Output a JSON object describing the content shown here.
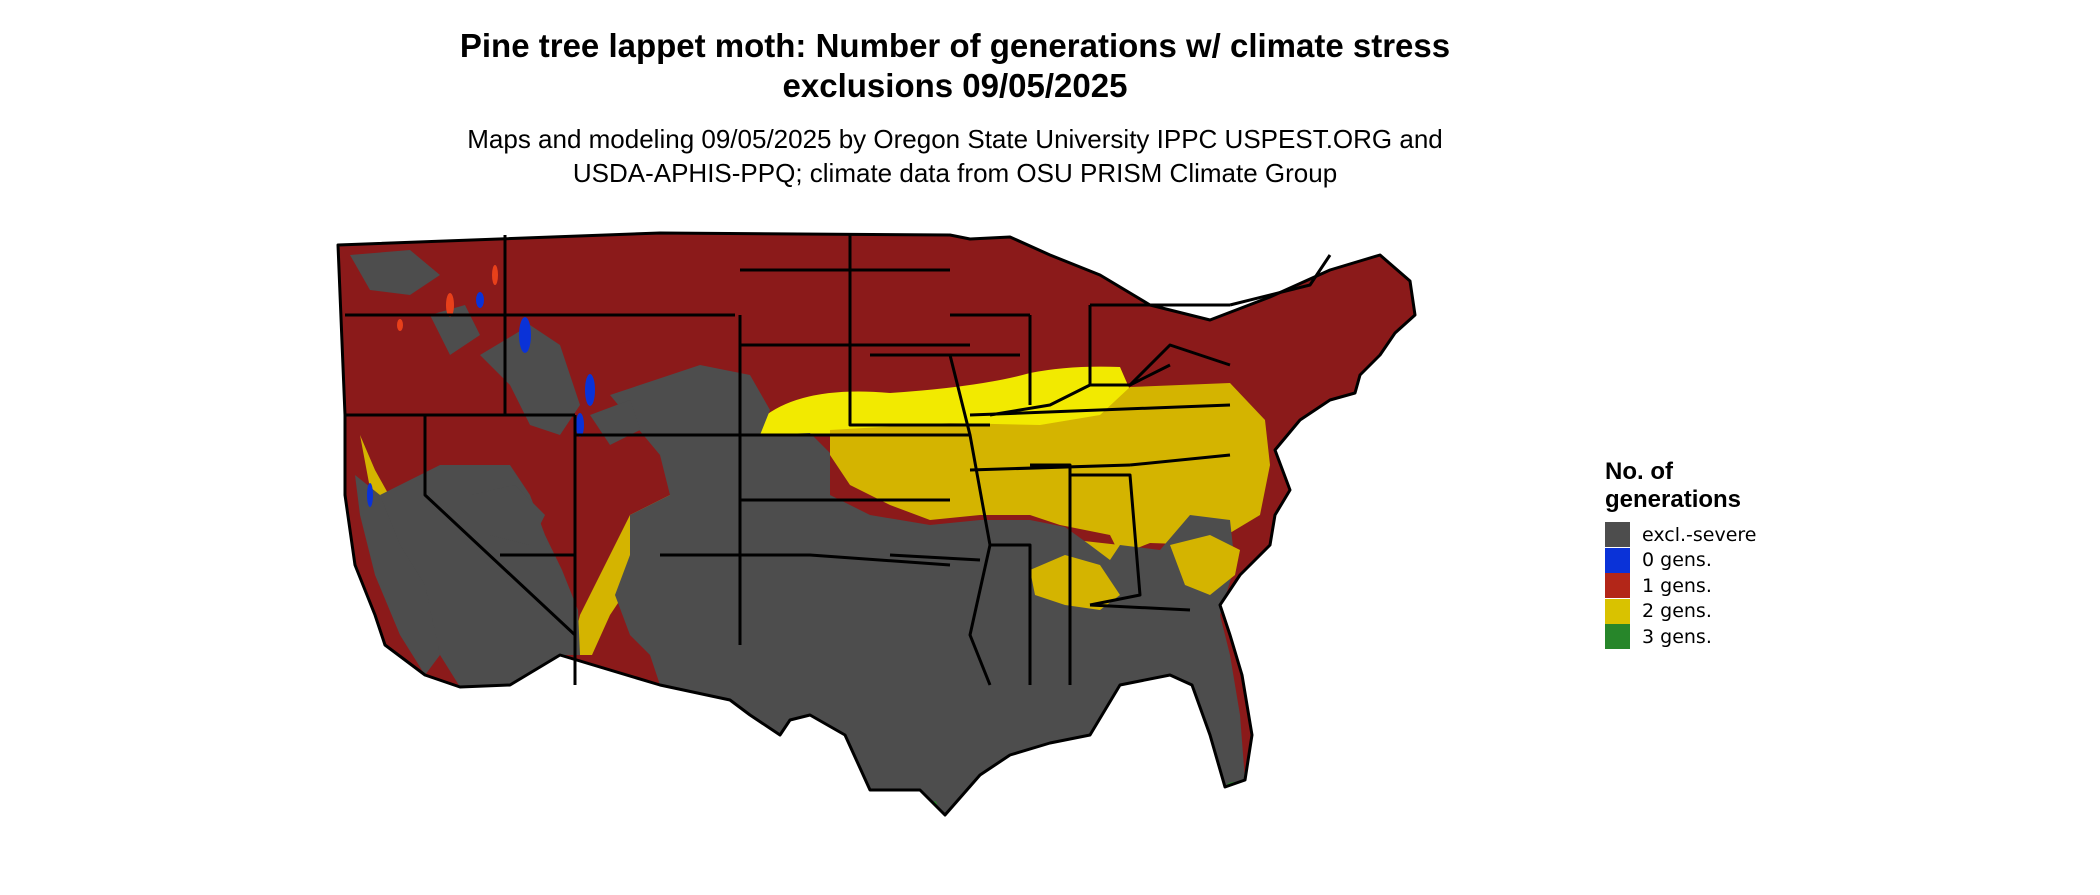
{
  "header": {
    "title_line1": "Pine tree lappet moth: Number of generations w/ climate stress",
    "title_line2": "exclusions 09/05/2025",
    "subtitle_line1": "Maps and modeling 09/05/2025 by Oregon State University IPPC USPEST.ORG and",
    "subtitle_line2": "USDA-APHIS-PPQ; climate data from OSU PRISM Climate Group"
  },
  "legend": {
    "title_line1": "No. of",
    "title_line2": "generations",
    "items": [
      {
        "label": "excl.-severe",
        "color": "#4d4d4d"
      },
      {
        "label": "0 gens.",
        "color": "#0a32d8"
      },
      {
        "label": "1 gens.",
        "color": "#b32618"
      },
      {
        "label": "2 gens.",
        "color": "#d9c200"
      },
      {
        "label": "3 gens.",
        "color": "#27862a"
      }
    ]
  },
  "colors": {
    "excluded": "#4d4d4d",
    "zero_gens": "#0a32d8",
    "one_gen": "#8b1a1a",
    "one_gen_light": "#e8401a",
    "two_gens": "#d4b400",
    "two_gens_light": "#f2ea00",
    "three_gens": "#27862a",
    "state_border": "#000000"
  }
}
